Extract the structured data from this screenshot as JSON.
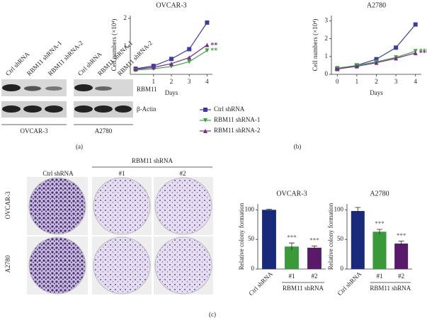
{
  "panel_labels": [
    "(a)",
    "(b)",
    "(c)"
  ],
  "blot": {
    "lanes": [
      "Ctrl shRNA",
      "RBM11 shRNA-1",
      "RBM11 shRNA-2"
    ],
    "cell_lines": [
      "OVCAR-3",
      "A2780"
    ],
    "proteins": [
      "RBM11",
      "β-Actin"
    ]
  },
  "colony": {
    "group": "RBM11 shRNA",
    "columns": [
      "Ctrl shRNA",
      "#1",
      "#2"
    ],
    "rows": [
      "OVCAR-3",
      "A2780"
    ]
  },
  "chart_data": [
    {
      "type": "line",
      "title": "OVCAR-3",
      "xlabel": "Days",
      "ylabel": "Cell numbers (×10⁴)",
      "x": [
        0,
        1,
        2,
        3,
        4
      ],
      "xlim": [
        -0.3,
        4.3
      ],
      "xticks": [
        1,
        2,
        3,
        4
      ],
      "ylim": [
        0,
        2.1
      ],
      "yticks": [
        1,
        2
      ],
      "series": [
        {
          "name": "Ctrl shRNA",
          "color": "#3a3aa8",
          "marker": "square",
          "values": [
            0.2,
            0.3,
            0.55,
            0.9,
            1.85
          ]
        },
        {
          "name": "RBM11 shRNA-1",
          "color": "#3aa83a",
          "marker": "down",
          "values": [
            0.15,
            0.2,
            0.28,
            0.45,
            0.85
          ]
        },
        {
          "name": "RBM11 shRNA-2",
          "color": "#7a2a8a",
          "marker": "up",
          "values": [
            0.18,
            0.25,
            0.38,
            0.6,
            1.05
          ]
        }
      ],
      "annotations": [
        "**",
        "**"
      ]
    },
    {
      "type": "line",
      "title": "A2780",
      "xlabel": "Days",
      "ylabel": "Cell numbers (×10⁴)",
      "x": [
        0,
        1,
        2,
        3,
        4
      ],
      "xlim": [
        -0.3,
        4.3
      ],
      "xticks": [
        0,
        1,
        2,
        3,
        4
      ],
      "ylim": [
        0,
        3.3
      ],
      "yticks": [
        0,
        1,
        2,
        3
      ],
      "series": [
        {
          "name": "Ctrl shRNA",
          "color": "#3a3aa8",
          "marker": "square",
          "values": [
            0.3,
            0.5,
            0.85,
            1.5,
            2.8
          ]
        },
        {
          "name": "RBM11 shRNA-1",
          "color": "#3aa83a",
          "marker": "down",
          "values": [
            0.35,
            0.5,
            0.7,
            0.95,
            1.3
          ]
        },
        {
          "name": "RBM11 shRNA-2",
          "color": "#7a2a8a",
          "marker": "up",
          "values": [
            0.3,
            0.45,
            0.65,
            0.9,
            1.2
          ]
        }
      ],
      "annotations": [
        "***",
        "***"
      ]
    },
    {
      "type": "bar",
      "title": "OVCAR-3",
      "ylabel": "Relative colony formation",
      "group_label": "RBM11 shRNA",
      "categories": [
        "Ctrl shRNA",
        "#1",
        "#2"
      ],
      "values": [
        100,
        38,
        36
      ],
      "errors": [
        1,
        6,
        3
      ],
      "colors": [
        "#1a2a7a",
        "#3a9a3a",
        "#5a1a6a"
      ],
      "ylim": [
        0,
        110
      ],
      "yticks": [
        0,
        50,
        100
      ],
      "annotations": [
        "***",
        "***"
      ]
    },
    {
      "type": "bar",
      "title": "A2780",
      "ylabel": "Relative colony formation",
      "group_label": "RBM11 shRNA",
      "categories": [
        "Ctrl shRNA",
        "#1",
        "#2"
      ],
      "values": [
        98,
        63,
        43
      ],
      "errors": [
        6,
        4,
        4
      ],
      "colors": [
        "#1a2a7a",
        "#3a9a3a",
        "#5a1a6a"
      ],
      "ylim": [
        0,
        110
      ],
      "yticks": [
        0,
        50,
        100
      ],
      "annotations": [
        "***",
        "***"
      ]
    }
  ]
}
